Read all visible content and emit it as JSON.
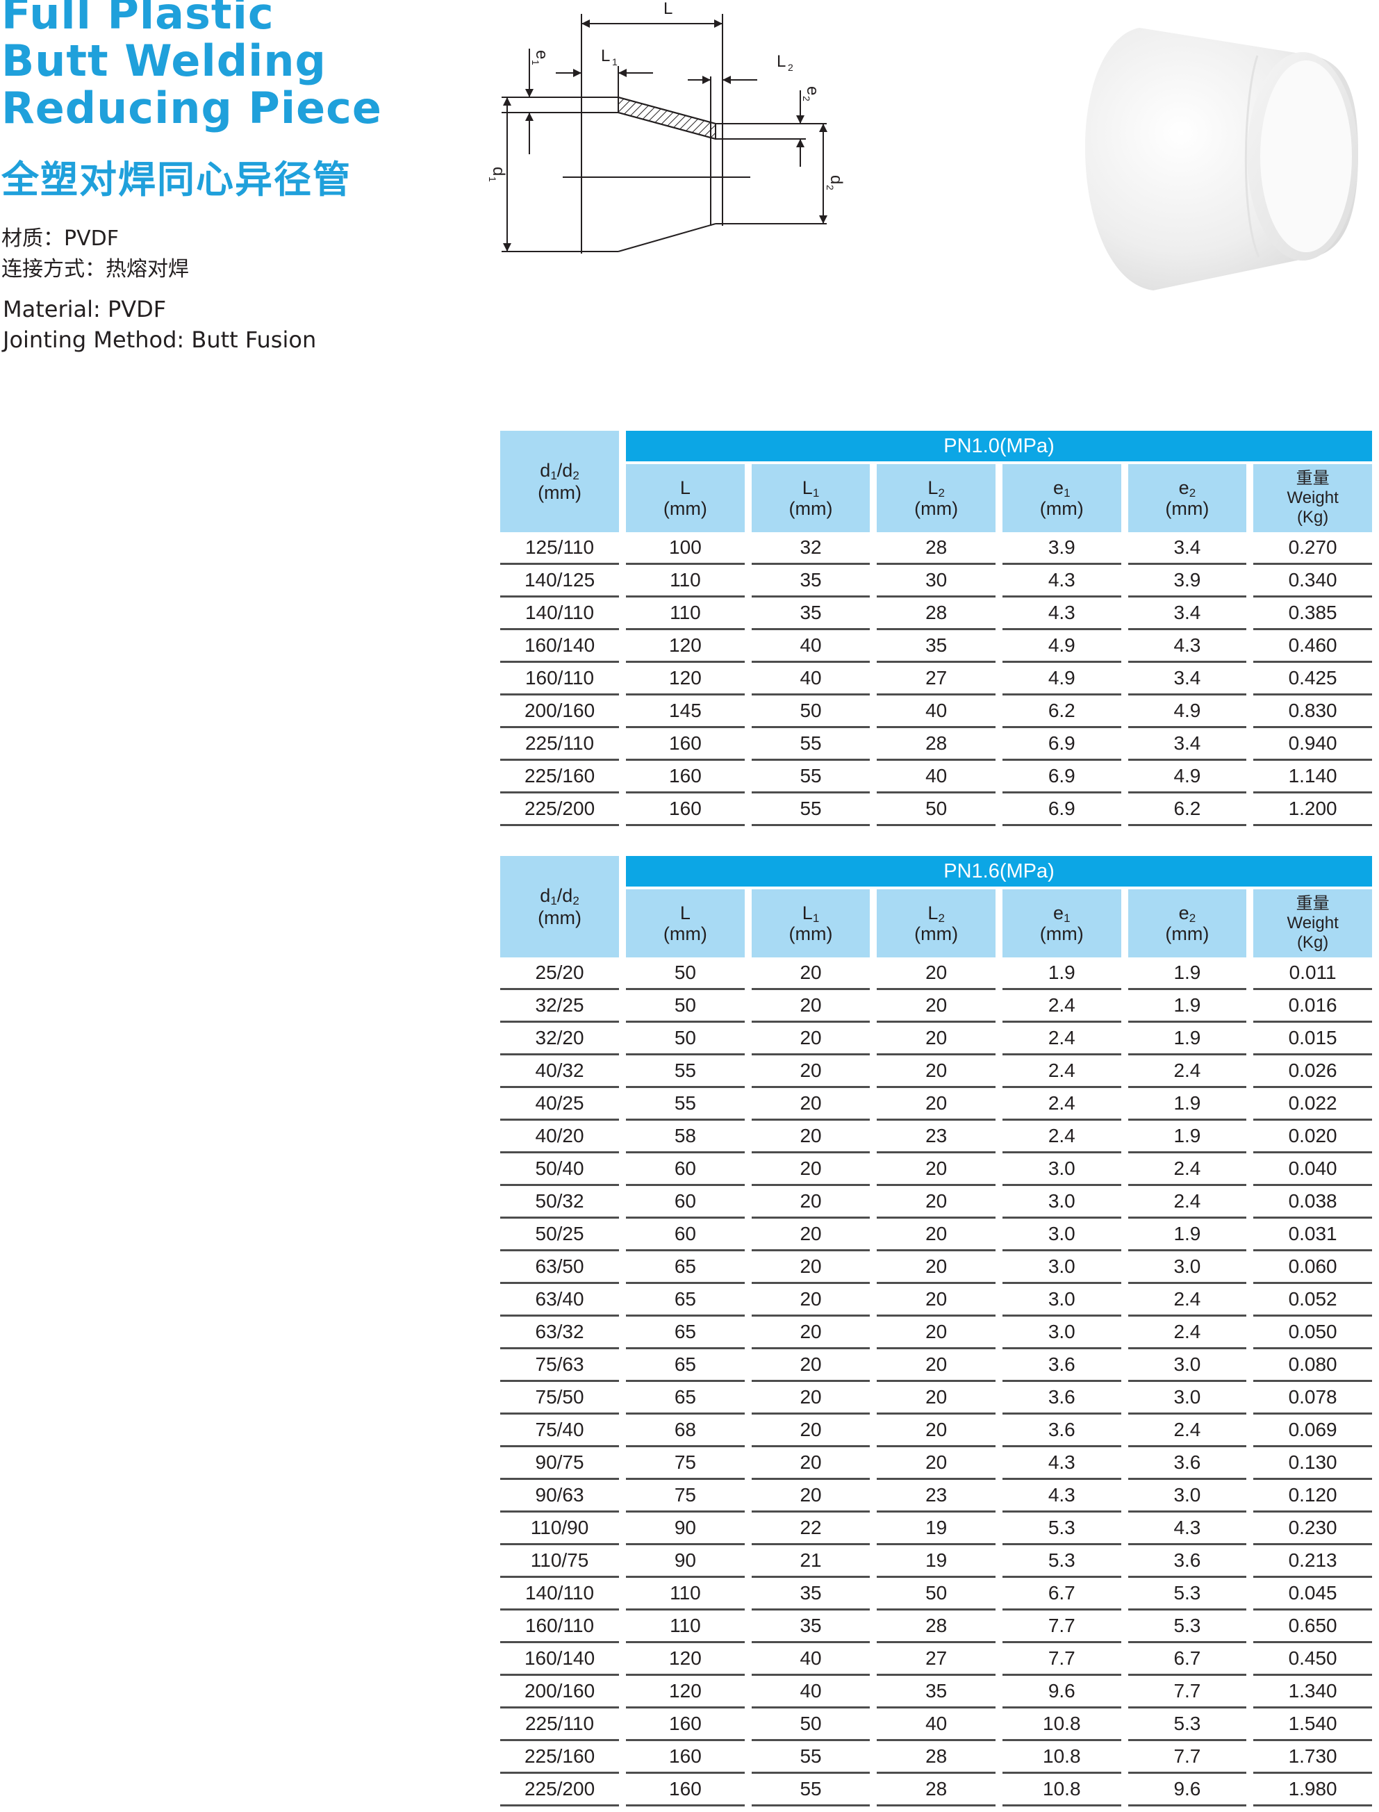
{
  "title": {
    "en_lines": [
      "Full Plastic",
      "Butt Welding",
      "Reducing Piece"
    ],
    "cn": "全塑对焊同心异径管"
  },
  "specs": {
    "material_cn": "材质：PVDF",
    "jointing_cn": "连接方式：热熔对焊",
    "material_en": "Material: PVDF",
    "jointing_en": "Jointing Method: Butt Fusion"
  },
  "drawing_labels": {
    "L": "L",
    "L1": "L",
    "L1_sub": "1",
    "L2": "L",
    "L2_sub": "2",
    "e1": "e",
    "e1_sub": "1",
    "e2": "e",
    "e2_sub": "2",
    "d1": "d",
    "d1_sub": "1",
    "d2": "d",
    "d2_sub": "2"
  },
  "headers": {
    "d_main": "d",
    "d_sub1": "1",
    "d_sep": "/d",
    "d_sub2": "2",
    "mm": "(mm)",
    "L": "L",
    "L1": "L",
    "L1_sub": "1",
    "L2": "L",
    "L2_sub": "2",
    "e1": "e",
    "e1_sub": "1",
    "e2": "e",
    "e2_sub": "2",
    "weight_cn": "重量",
    "weight_en": "Weight",
    "weight_unit": "(Kg)"
  },
  "tables": [
    {
      "pn_label": "PN1.0(MPa)",
      "rows": [
        [
          "125/110",
          "100",
          "32",
          "28",
          "3.9",
          "3.4",
          "0.270"
        ],
        [
          "140/125",
          "110",
          "35",
          "30",
          "4.3",
          "3.9",
          "0.340"
        ],
        [
          "140/110",
          "110",
          "35",
          "28",
          "4.3",
          "3.4",
          "0.385"
        ],
        [
          "160/140",
          "120",
          "40",
          "35",
          "4.9",
          "4.3",
          "0.460"
        ],
        [
          "160/110",
          "120",
          "40",
          "27",
          "4.9",
          "3.4",
          "0.425"
        ],
        [
          "200/160",
          "145",
          "50",
          "40",
          "6.2",
          "4.9",
          "0.830"
        ],
        [
          "225/110",
          "160",
          "55",
          "28",
          "6.9",
          "3.4",
          "0.940"
        ],
        [
          "225/160",
          "160",
          "55",
          "40",
          "6.9",
          "4.9",
          "1.140"
        ],
        [
          "225/200",
          "160",
          "55",
          "50",
          "6.9",
          "6.2",
          "1.200"
        ]
      ]
    },
    {
      "pn_label": "PN1.6(MPa)",
      "rows": [
        [
          "25/20",
          "50",
          "20",
          "20",
          "1.9",
          "1.9",
          "0.011"
        ],
        [
          "32/25",
          "50",
          "20",
          "20",
          "2.4",
          "1.9",
          "0.016"
        ],
        [
          "32/20",
          "50",
          "20",
          "20",
          "2.4",
          "1.9",
          "0.015"
        ],
        [
          "40/32",
          "55",
          "20",
          "20",
          "2.4",
          "2.4",
          "0.026"
        ],
        [
          "40/25",
          "55",
          "20",
          "20",
          "2.4",
          "1.9",
          "0.022"
        ],
        [
          "40/20",
          "58",
          "20",
          "23",
          "2.4",
          "1.9",
          "0.020"
        ],
        [
          "50/40",
          "60",
          "20",
          "20",
          "3.0",
          "2.4",
          "0.040"
        ],
        [
          "50/32",
          "60",
          "20",
          "20",
          "3.0",
          "2.4",
          "0.038"
        ],
        [
          "50/25",
          "60",
          "20",
          "20",
          "3.0",
          "1.9",
          "0.031"
        ],
        [
          "63/50",
          "65",
          "20",
          "20",
          "3.0",
          "3.0",
          "0.060"
        ],
        [
          "63/40",
          "65",
          "20",
          "20",
          "3.0",
          "2.4",
          "0.052"
        ],
        [
          "63/32",
          "65",
          "20",
          "20",
          "3.0",
          "2.4",
          "0.050"
        ],
        [
          "75/63",
          "65",
          "20",
          "20",
          "3.6",
          "3.0",
          "0.080"
        ],
        [
          "75/50",
          "65",
          "20",
          "20",
          "3.6",
          "3.0",
          "0.078"
        ],
        [
          "75/40",
          "68",
          "20",
          "20",
          "3.6",
          "2.4",
          "0.069"
        ],
        [
          "90/75",
          "75",
          "20",
          "20",
          "4.3",
          "3.6",
          "0.130"
        ],
        [
          "90/63",
          "75",
          "20",
          "23",
          "4.3",
          "3.0",
          "0.120"
        ],
        [
          "110/90",
          "90",
          "22",
          "19",
          "5.3",
          "4.3",
          "0.230"
        ],
        [
          "110/75",
          "90",
          "21",
          "19",
          "5.3",
          "3.6",
          "0.213"
        ],
        [
          "140/110",
          "110",
          "35",
          "50",
          "6.7",
          "5.3",
          "0.045"
        ],
        [
          "160/110",
          "110",
          "35",
          "28",
          "7.7",
          "5.3",
          "0.650"
        ],
        [
          "160/140",
          "120",
          "40",
          "27",
          "7.7",
          "6.7",
          "0.450"
        ],
        [
          "200/160",
          "120",
          "40",
          "35",
          "9.6",
          "7.7",
          "1.340"
        ],
        [
          "225/110",
          "160",
          "50",
          "40",
          "10.8",
          "5.3",
          "1.540"
        ],
        [
          "225/160",
          "160",
          "55",
          "28",
          "10.8",
          "7.7",
          "1.730"
        ],
        [
          "225/200",
          "160",
          "55",
          "28",
          "10.8",
          "9.6",
          "1.980"
        ]
      ]
    }
  ]
}
